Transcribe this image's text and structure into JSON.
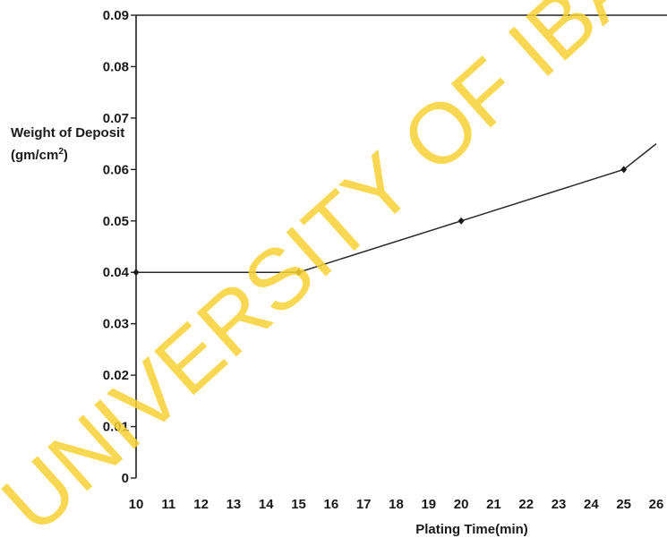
{
  "chart_data": {
    "type": "line",
    "title": "",
    "ylabel_line1": "Weight of Deposit",
    "ylabel_line2": "(gm/cm",
    "ylabel_sup": "2",
    "ylabel_close": ")",
    "xlabel": "Plating Time(min)",
    "xlim": [
      10,
      26
    ],
    "ylim": [
      0,
      0.09
    ],
    "x_ticks": [
      "10",
      "11",
      "12",
      "13",
      "14",
      "15",
      "16",
      "17",
      "18",
      "19",
      "20",
      "21",
      "22",
      "23",
      "24",
      "25",
      "26"
    ],
    "y_ticks": [
      "0",
      "0.01",
      "0.02",
      "0.03",
      "0.04",
      "0.05",
      "0.06",
      "0.07",
      "0.08",
      "0.09"
    ],
    "series": [
      {
        "x": [
          10,
          15,
          20,
          25,
          26
        ],
        "y": [
          0.04,
          0.04,
          0.05,
          0.06,
          0.065
        ]
      }
    ],
    "grid": false,
    "line_color": "#2a2a2a"
  },
  "watermark": {
    "text": "UNIVERSITY OF IBADAN",
    "color": "#f7d235"
  }
}
